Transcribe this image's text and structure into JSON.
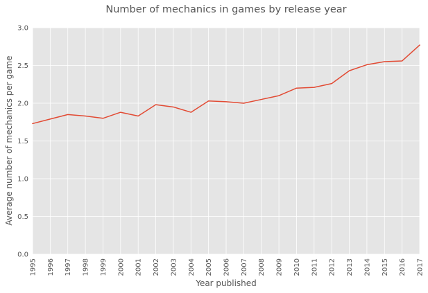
{
  "chart_data": {
    "type": "line",
    "title": "Number of mechanics in games by release year",
    "xlabel": "Year published",
    "ylabel": "Average number of mechanics per game",
    "x": [
      1995,
      1996,
      1997,
      1998,
      1999,
      2000,
      2001,
      2002,
      2003,
      2004,
      2005,
      2006,
      2007,
      2008,
      2009,
      2010,
      2011,
      2012,
      2013,
      2014,
      2015,
      2016,
      2017
    ],
    "xticks": [
      "1995",
      "1996",
      "1997",
      "1998",
      "1999",
      "2000",
      "2001",
      "2002",
      "2003",
      "2004",
      "2005",
      "2006",
      "2007",
      "2008",
      "2009",
      "2010",
      "2011",
      "2012",
      "2013",
      "2014",
      "2015",
      "2016",
      "2017"
    ],
    "series": [
      {
        "values": [
          1.73,
          1.79,
          1.85,
          1.83,
          1.8,
          1.88,
          1.83,
          1.98,
          1.95,
          1.88,
          2.03,
          2.02,
          2.0,
          2.05,
          2.1,
          2.2,
          2.21,
          2.26,
          2.43,
          2.51,
          2.55,
          2.56,
          2.77
        ]
      }
    ],
    "xlim": [
      1995,
      2017
    ],
    "ylim": [
      0,
      3.0
    ],
    "yticks": [
      "0.0",
      "0.5",
      "1.0",
      "1.5",
      "2.0",
      "2.5",
      "3.0"
    ],
    "grid": true,
    "legend": "none",
    "colors": {
      "line": "#e24a33",
      "plot_background": "#e5e5e5",
      "grid": "#ffffff",
      "text": "#555555"
    }
  }
}
